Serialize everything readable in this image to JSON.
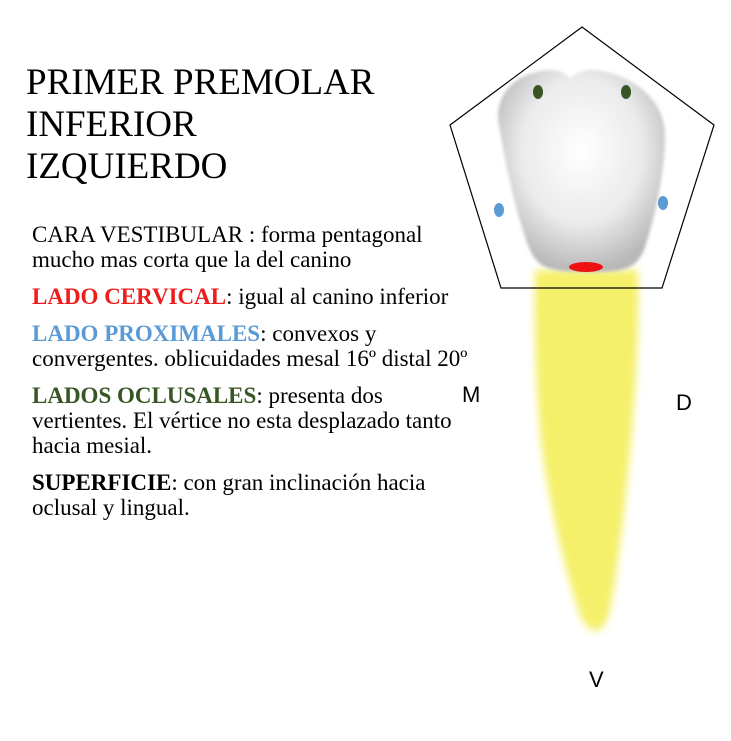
{
  "title": {
    "line1": "PRIMER PREMOLAR",
    "line2": "INFERIOR",
    "line3": "IZQUIERDO"
  },
  "sections": [
    {
      "label": "CARA VESTIBULAR",
      "text": " : forma pentagonal mucho mas corta que la del canino",
      "color": "#000000"
    },
    {
      "label": "LADO CERVICAL",
      "text": ": igual al canino inferior",
      "color": "#ee1c1c"
    },
    {
      "label": "LADO PROXIMALES",
      "text": ": convexos y convergentes. oblicuidades mesal 16º distal 20º",
      "color": "#5b9bd5"
    },
    {
      "label": "LADOS OCLUSALES",
      "text": ": presenta dos vertientes. El vértice no esta desplazado tanto hacia mesial.",
      "color": "#375623"
    },
    {
      "label": "SUPERFICIE",
      "text": ": con gran inclinación hacia oclusal y lingual.",
      "color": "#000000"
    }
  ],
  "diagram": {
    "label_m": "M",
    "label_d": "D",
    "label_v": "V",
    "colors": {
      "root": "#f5f06a",
      "crown": "#f2f2f2",
      "occlusal_dot": "#375623",
      "proximal_dot": "#5b9bd5",
      "cervical_mark": "#ee1111"
    }
  }
}
